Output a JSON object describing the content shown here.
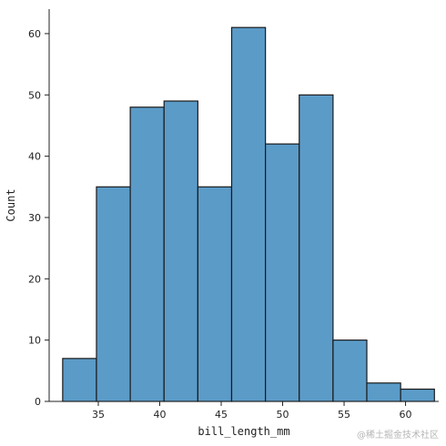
{
  "chart_data": {
    "type": "histogram",
    "xlabel": "bill_length_mm",
    "ylabel": "Count",
    "xlim": [
      31.0,
      61.0
    ],
    "ylim": [
      0,
      64
    ],
    "xticks": [
      35,
      40,
      45,
      50,
      55,
      60
    ],
    "yticks": [
      0,
      10,
      20,
      30,
      40,
      50,
      60
    ],
    "bins": [
      {
        "x0": 32.1,
        "x1": 34.85,
        "count": 7
      },
      {
        "x0": 34.85,
        "x1": 37.6,
        "count": 35
      },
      {
        "x0": 37.6,
        "x1": 40.35,
        "count": 48
      },
      {
        "x0": 40.35,
        "x1": 43.1,
        "count": 49
      },
      {
        "x0": 43.1,
        "x1": 45.85,
        "count": 35
      },
      {
        "x0": 45.85,
        "x1": 48.6,
        "count": 61
      },
      {
        "x0": 48.6,
        "x1": 51.35,
        "count": 42
      },
      {
        "x0": 51.35,
        "x1": 54.1,
        "count": 50
      },
      {
        "x0": 54.1,
        "x1": 56.85,
        "count": 10
      },
      {
        "x0": 56.85,
        "x1": 59.6,
        "count": 3
      },
      {
        "x0": 59.6,
        "x1": 62.35,
        "count": 2
      }
    ],
    "bar_color": "#5b9bc8",
    "edge_color": "#1a1a1a",
    "grid": false
  },
  "watermark": "@稀土掘金技术社区"
}
